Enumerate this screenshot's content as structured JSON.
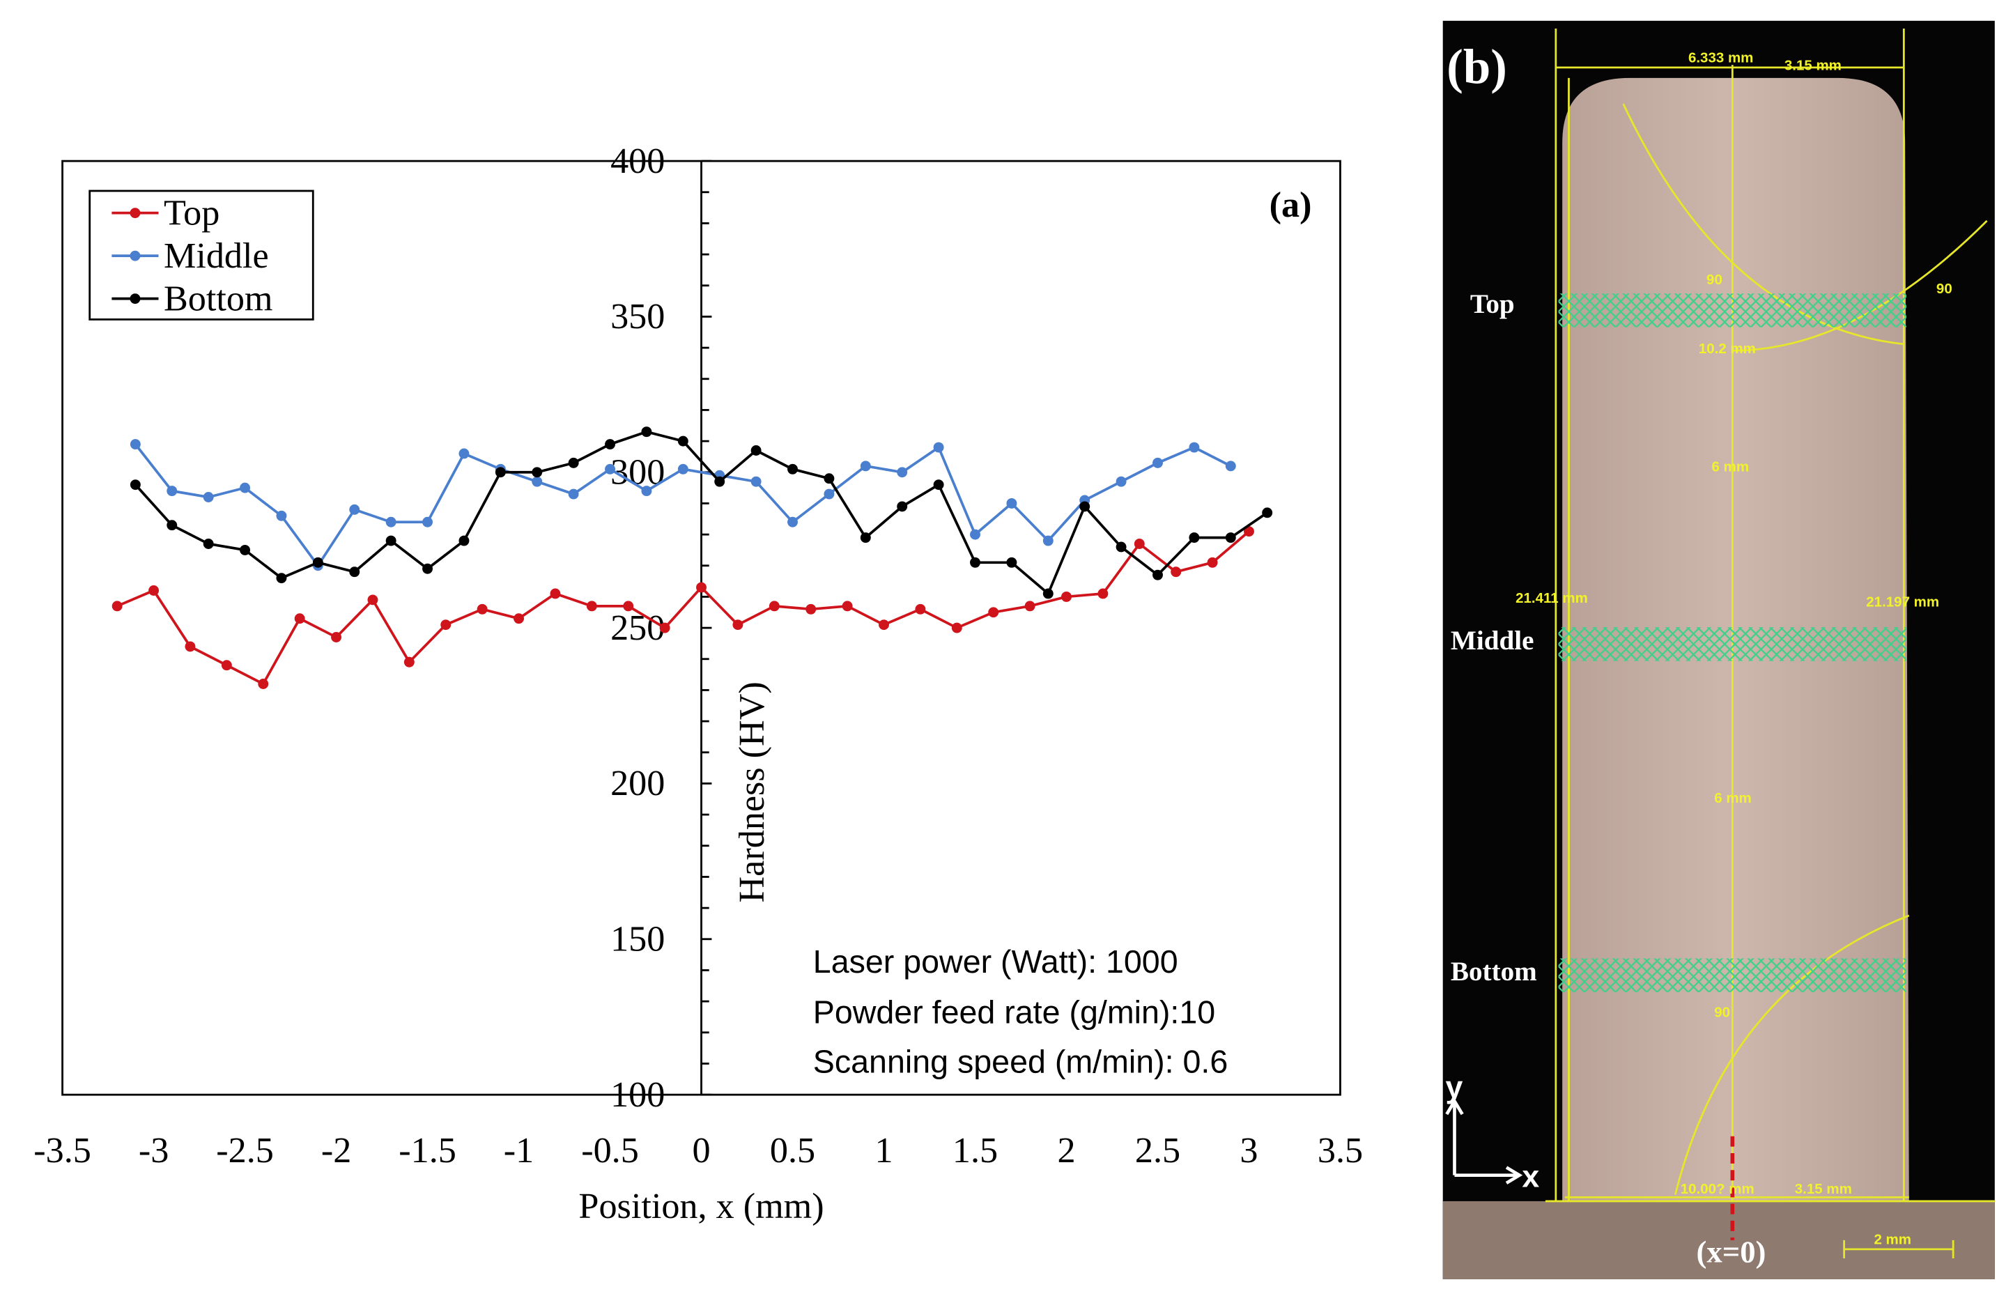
{
  "chart_data": {
    "type": "line",
    "panel_label": "(a)",
    "xlabel": "Position, x (mm)",
    "ylabel": "Hardness (HV)",
    "xlim": [
      -3.5,
      3.5
    ],
    "ylim": [
      100,
      400
    ],
    "x_ticks": [
      "-3.5",
      "-3",
      "-2.5",
      "-2",
      "-1.5",
      "-1",
      "-0.5",
      "0",
      "0.5",
      "1",
      "1.5",
      "2",
      "2.5",
      "3",
      "3.5"
    ],
    "y_ticks": [
      "100",
      "150",
      "200",
      "250",
      "300",
      "350",
      "400"
    ],
    "grid": false,
    "legend_position": "top-left",
    "series": [
      {
        "name": "Top",
        "color": "#d0141c",
        "x": [
          -3.2,
          -3.0,
          -2.8,
          -2.6,
          -2.4,
          -2.2,
          -2.0,
          -1.8,
          -1.6,
          -1.4,
          -1.2,
          -1.0,
          -0.8,
          -0.6,
          -0.4,
          -0.2,
          0.0,
          0.2,
          0.4,
          0.6,
          0.8,
          1.0,
          1.2,
          1.4,
          1.6,
          1.8,
          2.0,
          2.2,
          2.4,
          2.6,
          2.8,
          3.0
        ],
        "values": [
          257,
          262,
          244,
          238,
          232,
          253,
          247,
          259,
          239,
          251,
          256,
          253,
          261,
          257,
          257,
          250,
          263,
          251,
          257,
          256,
          257,
          251,
          256,
          250,
          255,
          257,
          260,
          261,
          277,
          268,
          271,
          281
        ]
      },
      {
        "name": "Middle",
        "color": "#4a7fcf",
        "x": [
          -3.1,
          -2.9,
          -2.7,
          -2.5,
          -2.3,
          -2.1,
          -1.9,
          -1.7,
          -1.5,
          -1.3,
          -1.1,
          -0.9,
          -0.7,
          -0.5,
          -0.3,
          -0.1,
          0.1,
          0.3,
          0.5,
          0.7,
          0.9,
          1.1,
          1.3,
          1.5,
          1.7,
          1.9,
          2.1,
          2.3,
          2.5,
          2.7,
          2.9
        ],
        "values": [
          309,
          294,
          292,
          295,
          286,
          270,
          288,
          284,
          284,
          306,
          301,
          297,
          293,
          301,
          294,
          301,
          299,
          297,
          284,
          293,
          302,
          300,
          308,
          280,
          290,
          278,
          291,
          297,
          303,
          308,
          302
        ]
      },
      {
        "name": "Bottom",
        "color": "#000000",
        "x": [
          -3.1,
          -2.9,
          -2.7,
          -2.5,
          -2.3,
          -2.1,
          -1.9,
          -1.7,
          -1.5,
          -1.3,
          -1.1,
          -0.9,
          -0.7,
          -0.5,
          -0.3,
          -0.1,
          0.1,
          0.3,
          0.5,
          0.7,
          0.9,
          1.1,
          1.3,
          1.5,
          1.7,
          1.9,
          2.1,
          2.3,
          2.5,
          2.7,
          2.9,
          3.1
        ],
        "values": [
          296,
          283,
          277,
          275,
          266,
          271,
          268,
          278,
          269,
          278,
          300,
          300,
          303,
          309,
          313,
          310,
          297,
          307,
          301,
          298,
          279,
          289,
          296,
          271,
          271,
          261,
          289,
          276,
          267,
          279,
          279,
          287
        ]
      }
    ],
    "annotations": [
      "Laser power (Watt): 1000",
      "Powder feed rate (g/min):10",
      "Scanning speed (m/min): 0.6"
    ]
  },
  "photo": {
    "panel_label": "(b)",
    "row_labels": [
      "Top",
      "Middle",
      "Bottom"
    ],
    "measurements": {
      "width_top": "6.333 mm",
      "half_top": "3.15 mm",
      "angle_top_inner": "90",
      "angle_top_outer": "90",
      "height_top": "10.2 mm",
      "spacing_1": "6 mm",
      "left_height": "21.411 mm",
      "right_height": "21.197 mm",
      "spacing_2": "6 mm",
      "angle_bottom": "90",
      "width_bottom": "10.00? mm",
      "half_bottom": "3.15 mm",
      "scale_bar": "2 mm"
    },
    "axis_y": "y",
    "axis_x": "x",
    "origin_label": "(x=0)"
  }
}
